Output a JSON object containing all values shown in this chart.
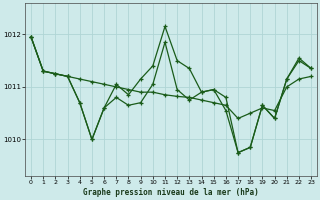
{
  "title": "Graphe pression niveau de la mer (hPa)",
  "bg_color": "#ceeaea",
  "grid_color": "#b0d5d5",
  "line_color": "#1a5c1a",
  "xlim": [
    -0.5,
    23.5
  ],
  "ylim": [
    1009.3,
    1012.6
  ],
  "yticks": [
    1010,
    1011,
    1012
  ],
  "xticks": [
    0,
    1,
    2,
    3,
    4,
    5,
    6,
    7,
    8,
    9,
    10,
    11,
    12,
    13,
    14,
    15,
    16,
    17,
    18,
    19,
    20,
    21,
    22,
    23
  ],
  "series": [
    [
      1011.95,
      1011.3,
      1011.25,
      1011.2,
      1011.15,
      1011.1,
      1011.05,
      1011.0,
      1010.95,
      1010.9,
      1010.9,
      1010.85,
      1010.82,
      1010.8,
      1010.75,
      1010.7,
      1010.65,
      1010.4,
      1010.5,
      1010.6,
      1010.55,
      1011.0,
      1011.15,
      1011.2
    ],
    [
      1011.95,
      1011.3,
      1011.25,
      1011.2,
      1010.7,
      1010.0,
      1010.6,
      1011.05,
      1010.85,
      1011.15,
      1011.4,
      1012.15,
      1011.5,
      1011.35,
      1010.9,
      1010.95,
      1010.55,
      1009.75,
      1009.85,
      1010.65,
      1010.4,
      1011.15,
      1011.55,
      1011.35
    ],
    [
      1011.95,
      1011.3,
      1011.25,
      1011.2,
      1010.7,
      1010.0,
      1010.6,
      1010.8,
      1010.65,
      1010.7,
      1011.05,
      1011.85,
      1010.95,
      1010.75,
      1010.9,
      1010.95,
      1010.8,
      1009.75,
      1009.85,
      1010.65,
      1010.4,
      1011.15,
      1011.5,
      1011.35
    ]
  ]
}
